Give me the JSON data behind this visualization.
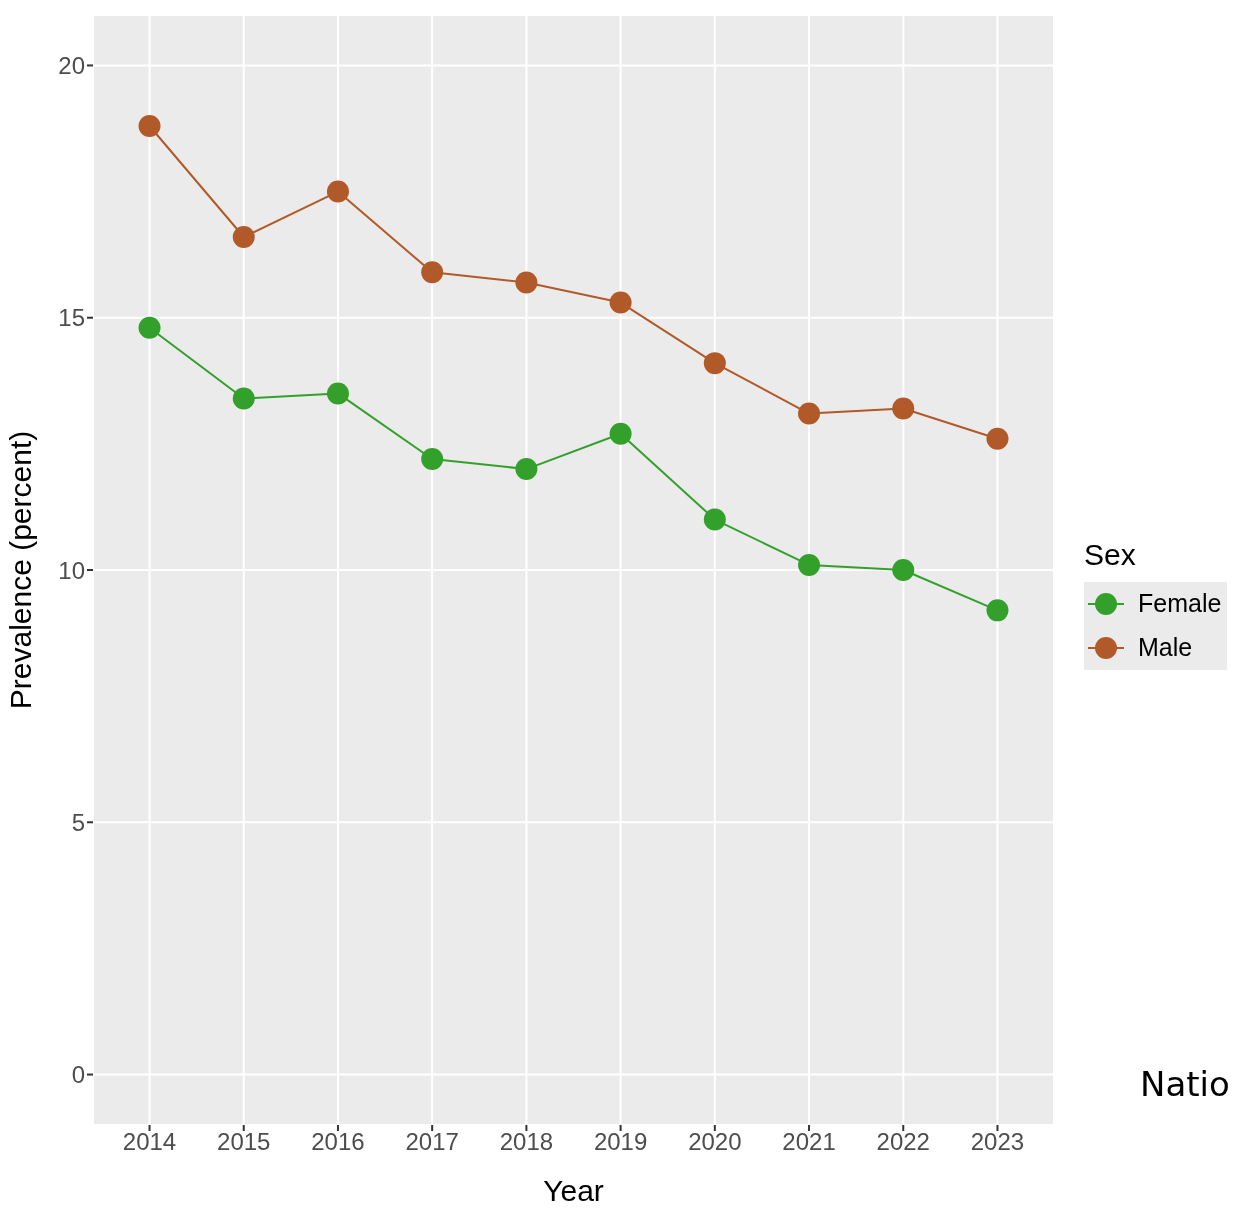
{
  "chart_data": {
    "type": "line",
    "xlabel": "Year",
    "ylabel": "Prevalence (percent)",
    "legend_title": "Sex",
    "x": [
      2014,
      2015,
      2016,
      2017,
      2018,
      2019,
      2020,
      2021,
      2022,
      2023
    ],
    "xlim": [
      2013.4,
      2023.6
    ],
    "xticks": [
      2014,
      2015,
      2016,
      2017,
      2018,
      2019,
      2020,
      2021,
      2022,
      2023
    ],
    "ylim": [
      -1,
      21
    ],
    "yticks": [
      0,
      5,
      10,
      15,
      20
    ],
    "series": [
      {
        "name": "Female",
        "color": "#33a02c",
        "values": [
          14.8,
          13.4,
          13.5,
          12.2,
          12.0,
          12.7,
          11.0,
          10.1,
          10.0,
          9.2
        ]
      },
      {
        "name": "Male",
        "color": "#b15928",
        "values": [
          18.8,
          16.6,
          17.5,
          15.9,
          15.7,
          15.3,
          14.1,
          13.1,
          13.2,
          12.6
        ]
      }
    ],
    "grid": true,
    "legend": "right",
    "marker": "circle",
    "line_style": "solid",
    "annotations": [
      "Natio"
    ]
  }
}
